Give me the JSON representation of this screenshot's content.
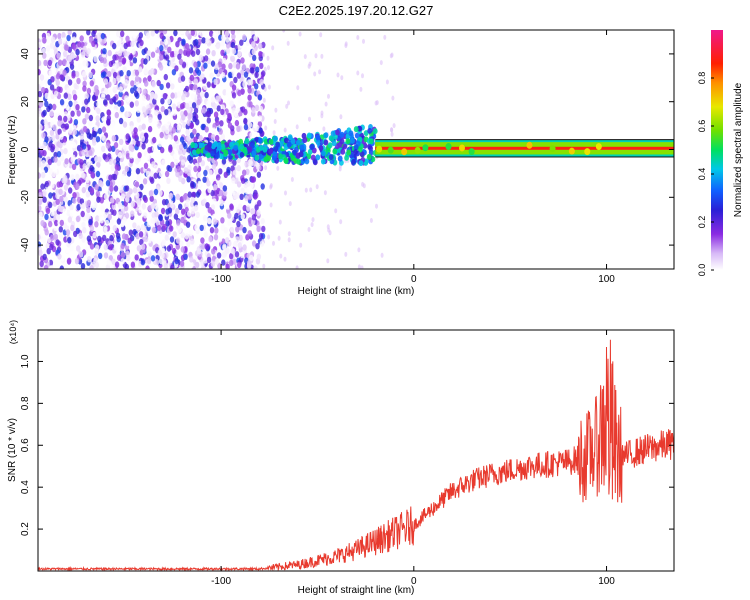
{
  "title": "C2E2.2025.197.20.12.G27",
  "chart_data": [
    {
      "type": "heatmap",
      "xlabel": "Height of straight line (km)",
      "ylabel": "Frequency (Hz)",
      "xlim": [
        -195,
        135
      ],
      "ylim": [
        -50,
        50
      ],
      "x_ticks": [
        -100,
        0,
        100
      ],
      "y_ticks": [
        -40,
        -20,
        0,
        20,
        40
      ],
      "colorbar": {
        "label": "Normalized spectral amplitude",
        "range": [
          0,
          1
        ],
        "ticks": [
          0.0,
          0.2,
          0.4,
          0.6,
          0.8
        ],
        "colormap": "white-purple-blue-cyan-green-yellow-red-magenta"
      },
      "features": [
        {
          "x_range": [
            -195,
            -78
          ],
          "description": "broadband noise across -50..50 Hz"
        },
        {
          "x_range": [
            -115,
            -20
          ],
          "f_range": [
            -10,
            10
          ],
          "level": 0.35
        },
        {
          "x_range": [
            -20,
            135
          ],
          "frequency": 0.5,
          "level": 0.9
        }
      ]
    },
    {
      "type": "line",
      "xlabel": "Height of straight line (km)",
      "ylabel": "SNR (10 * v/v)",
      "y_multiplier": "(x10⁴)",
      "xlim": [
        -195,
        135
      ],
      "ylim": [
        0,
        1.15
      ],
      "x_ticks": [
        -100,
        0,
        100
      ],
      "y_ticks": [
        0.2,
        0.4,
        0.6,
        0.8,
        1.0
      ],
      "color": "#e83a2e",
      "series": [
        {
          "x": [
            -195,
            -150,
            -100,
            -80,
            -70,
            -60,
            -50,
            -40,
            -30,
            -20,
            -10,
            0,
            10,
            20,
            30,
            40,
            50,
            60,
            70,
            80,
            90,
            95,
            100,
            105,
            110,
            120,
            135
          ],
          "y": [
            0.01,
            0.01,
            0.01,
            0.01,
            0.02,
            0.03,
            0.05,
            0.07,
            0.1,
            0.14,
            0.18,
            0.22,
            0.3,
            0.38,
            0.43,
            0.46,
            0.48,
            0.5,
            0.51,
            0.52,
            0.55,
            0.6,
            0.75,
            0.56,
            0.55,
            0.58,
            0.61
          ]
        }
      ]
    }
  ]
}
